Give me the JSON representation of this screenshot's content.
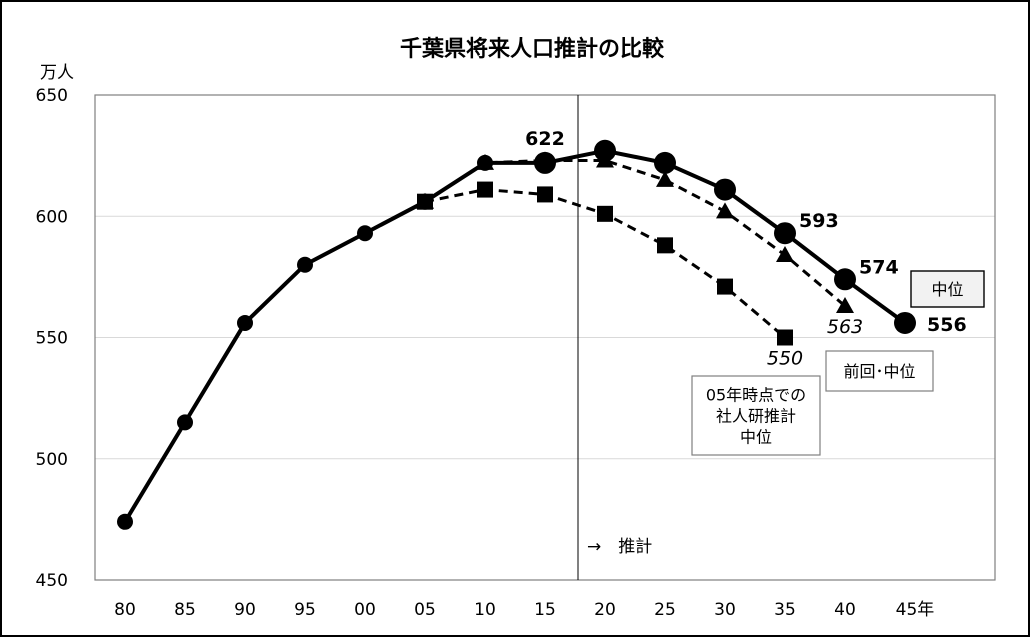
{
  "chart_data": {
    "type": "line",
    "title": "千葉県将来人口推計の比較",
    "ylabel": "万人",
    "xlabel": "",
    "ylim": [
      450,
      650
    ],
    "yticks": [
      450,
      500,
      550,
      600,
      650
    ],
    "grid": true,
    "categories": [
      "80",
      "85",
      "90",
      "95",
      "00",
      "05",
      "10",
      "15",
      "20",
      "25",
      "30",
      "35",
      "40",
      "45年"
    ],
    "divider_after_category": "15",
    "divider_label": "→　推計",
    "series": [
      {
        "name": "中位",
        "marker": "circle",
        "line": "solid",
        "values": [
          474,
          515,
          556,
          580,
          593,
          606,
          622,
          622,
          627,
          622,
          611,
          593,
          574,
          556
        ]
      },
      {
        "name": "前回･中位",
        "marker": "triangle",
        "line": "dashed",
        "values": [
          null,
          null,
          null,
          null,
          null,
          606,
          622,
          623,
          623,
          615,
          602,
          584,
          563,
          null
        ]
      },
      {
        "name": "05年時点での社人研推計中位",
        "marker": "square",
        "line": "dashed",
        "values": [
          null,
          null,
          null,
          null,
          null,
          606,
          611,
          609,
          601,
          588,
          571,
          550,
          null,
          null
        ]
      }
    ],
    "annotations": [
      {
        "series": 0,
        "index": 7,
        "text": "622",
        "style": "bold",
        "pos": "above"
      },
      {
        "series": 0,
        "index": 11,
        "text": "593",
        "style": "bold",
        "pos": "upper-right"
      },
      {
        "series": 0,
        "index": 12,
        "text": "574",
        "style": "bold",
        "pos": "upper-right"
      },
      {
        "series": 0,
        "index": 13,
        "text": "556",
        "style": "bold",
        "pos": "right"
      },
      {
        "series": 1,
        "index": 12,
        "text": "563",
        "style": "italic",
        "pos": "below"
      },
      {
        "series": 2,
        "index": 11,
        "text": "550",
        "style": "italic",
        "pos": "below"
      }
    ],
    "legend_boxes": [
      {
        "series": 0,
        "lines": [
          "中位"
        ],
        "shaded": true
      },
      {
        "series": 1,
        "lines": [
          "前回･中位"
        ],
        "shaded": false
      },
      {
        "series": 2,
        "lines": [
          "05年時点での",
          "社人研推計",
          "中位"
        ],
        "shaded": false
      }
    ]
  }
}
